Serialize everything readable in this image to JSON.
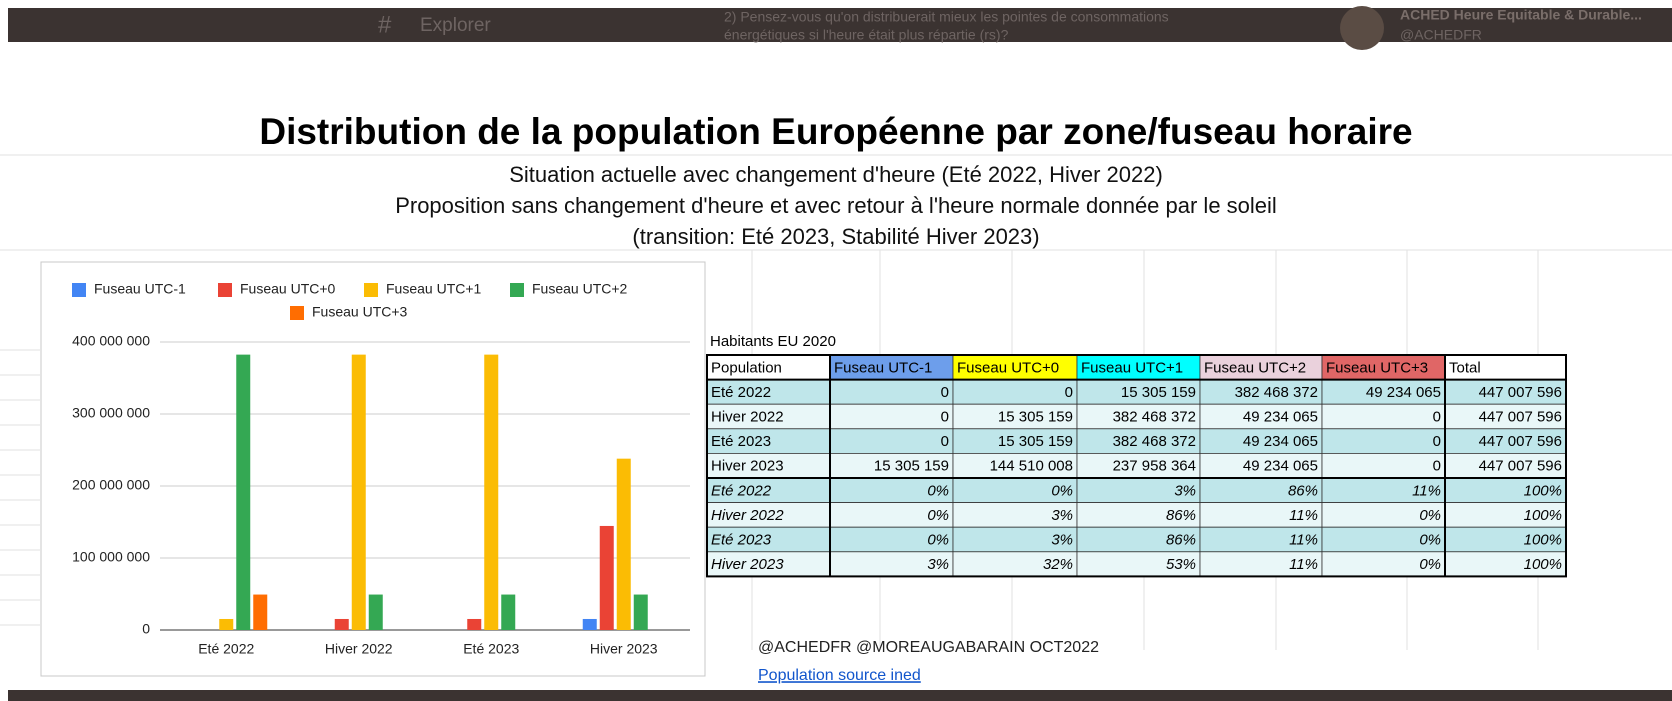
{
  "top_bar": {
    "nav": "Explorer",
    "tweet": "2) Pensez-vous qu'on distribuerait mieux les pointes de consommations",
    "tweet_line2": "énergétiques si l'heure était plus répartie (rs)?",
    "account": "ACHED Heure Equitable & Durable...",
    "handle": "@ACHEDFR"
  },
  "chart_data": {
    "type": "bar",
    "title": "Distribution de la population Européenne par zone/fuseau horaire",
    "subtitle": [
      "Situation actuelle avec changement d'heure  (Eté 2022, Hiver 2022)",
      "Proposition sans changement d'heure et avec retour à l'heure normale donnée par le soleil",
      "(transition: Eté 2023, Stabilité Hiver 2023)"
    ],
    "categories": [
      "Eté 2022",
      "Hiver 2022",
      "Eté 2023",
      "Hiver 2023"
    ],
    "series": [
      {
        "name": "Fuseau UTC-1",
        "color": "#4285f4",
        "values": [
          0,
          0,
          0,
          15305159
        ]
      },
      {
        "name": "Fuseau UTC+0",
        "color": "#ea4335",
        "values": [
          0,
          15305159,
          15305159,
          144510008
        ]
      },
      {
        "name": "Fuseau UTC+1",
        "color": "#fbbc04",
        "values": [
          15305159,
          382468372,
          382468372,
          237958364
        ]
      },
      {
        "name": "Fuseau UTC+2",
        "color": "#34a853",
        "values": [
          382468372,
          49234065,
          49234065,
          49234065
        ]
      },
      {
        "name": "Fuseau UTC+3",
        "color": "#ff6d01",
        "values": [
          49234065,
          0,
          0,
          0
        ]
      }
    ],
    "ylim": [
      0,
      400000000
    ],
    "yticks": [
      0,
      {
        "value": 100000000,
        "label": "100 000 000"
      },
      {
        "value": 200000000,
        "label": "200 000 000"
      },
      {
        "value": 300000000,
        "label": "300 000 000"
      },
      {
        "value": 400000000,
        "label": "400 000 000"
      }
    ],
    "grid": true,
    "legend": "top"
  },
  "table": {
    "caption": "Habitants EU 2020",
    "header": [
      "Population",
      "Fuseau UTC-1",
      "Fuseau UTC+0",
      "Fuseau UTC+1",
      "Fuseau UTC+2",
      "Fuseau UTC+3",
      "Total"
    ],
    "header_colors": [
      "#ffffff",
      "#6d9eeb",
      "#ffff00",
      "#00ffff",
      "#ead1dc",
      "#e06666",
      "#ffffff"
    ],
    "rows": [
      [
        "Eté 2022",
        "0",
        "0",
        "15 305 159",
        "382 468 372",
        "49 234 065",
        "447 007 596"
      ],
      [
        "Hiver 2022",
        "0",
        "15 305 159",
        "382 468 372",
        "49 234 065",
        "0",
        "447 007 596"
      ],
      [
        "Eté 2023",
        "0",
        "15 305 159",
        "382 468 372",
        "49 234 065",
        "0",
        "447 007 596"
      ],
      [
        "Hiver 2023",
        "15 305 159",
        "144 510 008",
        "237 958 364",
        "49 234 065",
        "0",
        "447 007 596"
      ],
      [
        "Eté 2022",
        "0%",
        "0%",
        "3%",
        "86%",
        "11%",
        "100%"
      ],
      [
        "Hiver 2022",
        "0%",
        "3%",
        "86%",
        "11%",
        "0%",
        "100%"
      ],
      [
        "Eté 2023",
        "0%",
        "3%",
        "86%",
        "11%",
        "0%",
        "100%"
      ],
      [
        "Hiver 2023",
        "3%",
        "32%",
        "53%",
        "11%",
        "0%",
        "100%"
      ]
    ],
    "credit": "@ACHEDFR @MOREAUGABARAIN OCT2022",
    "link": "Population source ined"
  }
}
